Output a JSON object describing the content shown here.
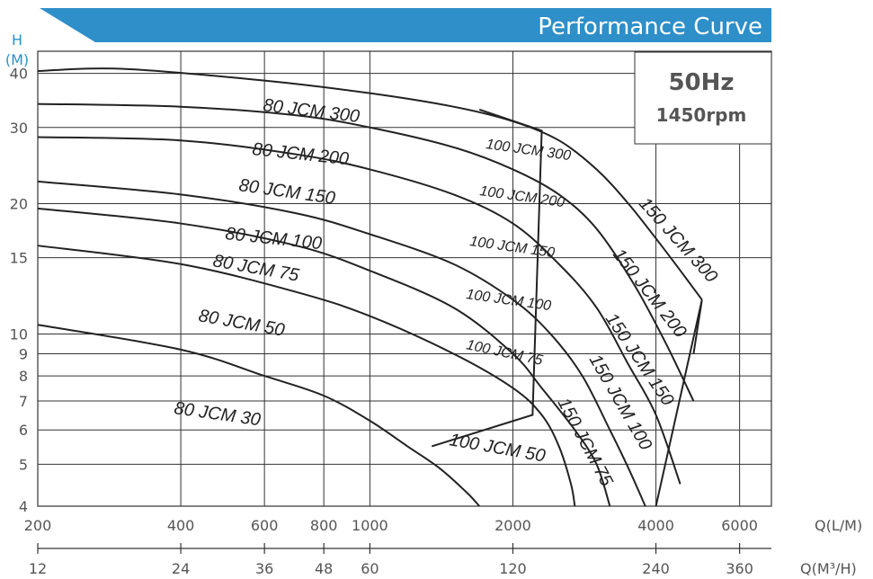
{
  "chart_data": {
    "type": "line",
    "title": "Performance Curve",
    "info": {
      "frequency": "50Hz",
      "speed": "1450rpm"
    },
    "y_axis": {
      "label_top": "H",
      "label_unit": "(M)",
      "scale": "log",
      "range": [
        4,
        45
      ],
      "ticks": [
        4,
        5,
        6,
        7,
        8,
        9,
        10,
        15,
        20,
        30,
        40
      ]
    },
    "x_axis_lpm": {
      "label": "Q(L/M)",
      "scale": "log",
      "range": [
        200,
        7000
      ],
      "ticks": [
        200,
        400,
        600,
        800,
        1000,
        2000,
        4000,
        6000
      ]
    },
    "x_axis_m3h": {
      "label": "Q(M³/H)",
      "scale": "log",
      "ticks": [
        12,
        24,
        36,
        48,
        60,
        120,
        240,
        360
      ]
    },
    "series": [
      {
        "name": "80 JCM 300",
        "points": [
          [
            200,
            40.5
          ],
          [
            300,
            41
          ],
          [
            600,
            38.5
          ],
          [
            1000,
            36
          ],
          [
            1500,
            33.5
          ],
          [
            2000,
            31
          ],
          [
            2500,
            28
          ],
          [
            3000,
            24
          ],
          [
            3500,
            20
          ],
          [
            4200,
            15.5
          ],
          [
            5000,
            12
          ]
        ]
      },
      {
        "name": "80 JCM 200",
        "points": [
          [
            200,
            34
          ],
          [
            400,
            33.5
          ],
          [
            700,
            32
          ],
          [
            1000,
            30
          ],
          [
            1500,
            27
          ],
          [
            2000,
            24
          ],
          [
            2500,
            21
          ],
          [
            3000,
            17.5
          ],
          [
            3600,
            13
          ],
          [
            4200,
            9.5
          ],
          [
            4800,
            7
          ]
        ]
      },
      {
        "name": "80 JCM 150",
        "points": [
          [
            200,
            28.5
          ],
          [
            400,
            28
          ],
          [
            700,
            26
          ],
          [
            1000,
            24
          ],
          [
            1500,
            21
          ],
          [
            2000,
            18
          ],
          [
            2500,
            14.5
          ],
          [
            3000,
            11.5
          ],
          [
            3500,
            8.5
          ],
          [
            4000,
            6.5
          ],
          [
            4500,
            4.5
          ]
        ]
      },
      {
        "name": "80 JCM 100",
        "points": [
          [
            200,
            22.5
          ],
          [
            400,
            21
          ],
          [
            700,
            19
          ],
          [
            1000,
            17
          ],
          [
            1500,
            14.5
          ],
          [
            2000,
            12
          ],
          [
            2400,
            10
          ],
          [
            2800,
            8
          ],
          [
            3200,
            6
          ],
          [
            3500,
            4.9
          ],
          [
            3800,
            4
          ]
        ]
      },
      {
        "name": "80 JCM 75",
        "points": [
          [
            200,
            19.5
          ],
          [
            400,
            18
          ],
          [
            700,
            16
          ],
          [
            1000,
            14
          ],
          [
            1500,
            11.5
          ],
          [
            2000,
            9
          ],
          [
            2300,
            7.5
          ],
          [
            2700,
            6
          ],
          [
            3000,
            5
          ],
          [
            3200,
            4
          ]
        ]
      },
      {
        "name": "80 JCM 50",
        "points": [
          [
            200,
            16
          ],
          [
            400,
            14.5
          ],
          [
            700,
            12.5
          ],
          [
            1000,
            11
          ],
          [
            1500,
            9
          ],
          [
            2000,
            7.5
          ],
          [
            2300,
            6.5
          ],
          [
            2500,
            5.5
          ],
          [
            2650,
            4.5
          ],
          [
            2700,
            4
          ]
        ]
      },
      {
        "name": "80 JCM 30",
        "points": [
          [
            200,
            10.5
          ],
          [
            400,
            9.2
          ],
          [
            600,
            8
          ],
          [
            800,
            7.2
          ],
          [
            1000,
            6.3
          ],
          [
            1200,
            5.5
          ],
          [
            1400,
            4.9
          ],
          [
            1600,
            4.3
          ],
          [
            1700,
            4
          ]
        ]
      },
      {
        "name": "100 JCM 300",
        "points": [
          [
            1700,
            33
          ],
          [
            2300,
            29.5
          ]
        ]
      },
      {
        "name": "100 JCM 200",
        "points": [
          [
            1550,
            23
          ],
          [
            2100,
            20
          ]
        ]
      },
      {
        "name": "100 JCM 150",
        "points": [
          [
            1450,
            19
          ],
          [
            2000,
            15.5
          ]
        ]
      },
      {
        "name": "100 JCM 100",
        "points": [
          [
            1400,
            14.5
          ],
          [
            1950,
            11.5
          ]
        ]
      },
      {
        "name": "100 JCM 75",
        "points": [
          [
            1350,
            10.5
          ],
          [
            1900,
            8.5
          ]
        ]
      },
      {
        "name": "100 JCM 50",
        "points": [
          [
            1300,
            5.5
          ],
          [
            1900,
            5
          ]
        ]
      },
      {
        "name": "150 JCM 300",
        "points": [
          [
            3300,
            25
          ],
          [
            5000,
            13
          ]
        ]
      },
      {
        "name": "150 JCM 200",
        "points": [
          [
            3000,
            19
          ],
          [
            4600,
            10
          ]
        ]
      },
      {
        "name": "150 JCM 150",
        "points": [
          [
            2800,
            14
          ],
          [
            4200,
            7.5
          ]
        ]
      },
      {
        "name": "150 JCM 100",
        "points": [
          [
            2600,
            11
          ],
          [
            3800,
            6
          ]
        ]
      },
      {
        "name": "150 JCM 75",
        "points": [
          [
            2400,
            7.5
          ],
          [
            3400,
            5
          ]
        ]
      }
    ],
    "envelopes": [
      {
        "name": "100 JCM range",
        "points": [
          [
            1700,
            33
          ],
          [
            2300,
            29.5
          ],
          [
            2200,
            6.5
          ],
          [
            1350,
            5.5
          ]
        ]
      },
      {
        "name": "150 JCM range",
        "points": [
          [
            4000,
            4
          ],
          [
            5000,
            12
          ],
          [
            4800,
            9
          ]
        ]
      }
    ],
    "grid": true
  }
}
